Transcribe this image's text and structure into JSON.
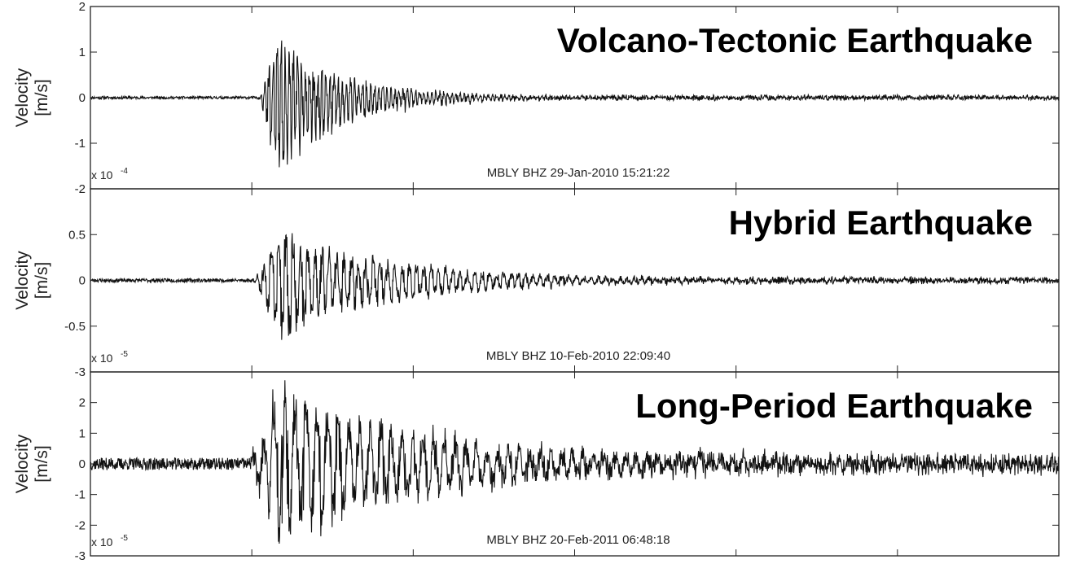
{
  "chart_data": [
    {
      "type": "line",
      "title": "Volcano-Tectonic Earthquake",
      "ylabel_line1": "Velocity",
      "ylabel_line2": "[m/s]",
      "ylim": [
        -2,
        2
      ],
      "yticks": [
        -2,
        -1,
        0,
        1,
        2
      ],
      "ytick_labels": [
        "-2",
        "-1",
        "0",
        "1",
        "2"
      ],
      "scale_base": "x 10",
      "scale_exponent": "-4",
      "annotation": "MBLY BHZ 29-Jan-2010 15:21:22",
      "x_tick_count": 6,
      "grid": false,
      "waveform": {
        "noise": 0.03,
        "onset": 0.175,
        "peak": 1.45,
        "peak_neg": -1.85,
        "attack": 0.018,
        "decay": 0.07,
        "period": 0.0042,
        "tail_noise": 0.04,
        "seed": 11
      }
    },
    {
      "type": "line",
      "title": "Hybrid Earthquake",
      "ylabel_line1": "Velocity",
      "ylabel_line2": "[m/s]",
      "ylim": [
        -1,
        1
      ],
      "yticks": [
        -0.5,
        0,
        0.5
      ],
      "ytick_labels": [
        "-0.5",
        "0",
        "0.5"
      ],
      "scale_base": "x 10",
      "scale_exponent": "-5",
      "annotation": "MBLY BHZ 10-Feb-2010 22:09:40",
      "x_tick_count": 6,
      "grid": false,
      "waveform": {
        "noise": 0.02,
        "onset": 0.17,
        "peak": 0.6,
        "peak_neg": -0.7,
        "attack": 0.025,
        "decay": 0.12,
        "period": 0.0075,
        "tail_noise": 0.025,
        "seed": 23
      }
    },
    {
      "type": "line",
      "title": "Long-Period Earthquake",
      "ylabel_line1": "Velocity",
      "ylabel_line2": "[m/s]",
      "ylim": [
        -3,
        3
      ],
      "yticks": [
        -2,
        -1,
        0,
        1,
        2
      ],
      "ytick_labels": [
        "-2",
        "-1",
        "0",
        "1",
        "2"
      ],
      "scale_base": "x 10",
      "scale_exponent": "-5",
      "annotation": "MBLY BHZ 20-Feb-2011 06:48:18",
      "x_tick_count": 6,
      "grid": false,
      "waveform": {
        "noise": 0.2,
        "onset": 0.165,
        "peak": 2.8,
        "peak_neg": -2.9,
        "attack": 0.03,
        "decay": 0.16,
        "period": 0.011,
        "tail_noise": 0.22,
        "seed": 37
      }
    }
  ],
  "extra_tick_labels": [
    "-3",
    "-3"
  ]
}
